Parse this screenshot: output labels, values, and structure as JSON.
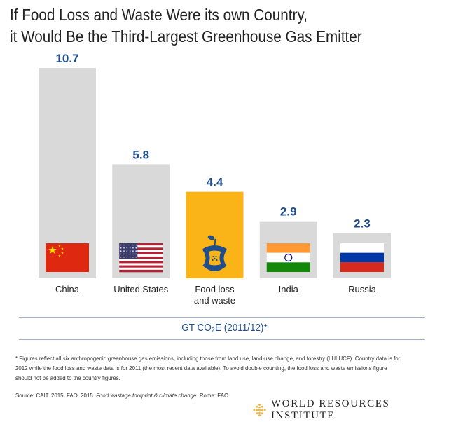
{
  "title_lines": [
    "If Food Loss and Waste Were its own Country,",
    "it Would Be the Third-Largest Greenhouse Gas Emitter"
  ],
  "chart_data": {
    "type": "bar",
    "title": "If Food Loss and Waste Were its own Country, it Would Be the Third-Largest Greenhouse Gas Emitter",
    "categories": [
      "China",
      "United States",
      "Food loss and waste",
      "India",
      "Russia"
    ],
    "category_lines": [
      [
        "China"
      ],
      [
        "United States"
      ],
      [
        "Food loss",
        "and waste"
      ],
      [
        "India"
      ],
      [
        "Russia"
      ]
    ],
    "values": [
      10.7,
      5.8,
      4.4,
      2.9,
      2.3
    ],
    "value_labels": [
      "10.7",
      "5.8",
      "4.4",
      "2.9",
      "2.3"
    ],
    "icons": [
      "china-flag",
      "us-flag",
      "apple-core",
      "india-flag",
      "russia-flag"
    ],
    "xlabel": "GT CO₂E (2011/12)*",
    "ylabel": "",
    "ylim": [
      0,
      10.7
    ],
    "grid": false,
    "colors": {
      "bar": "#d9d9d9",
      "highlight": "#fbb417",
      "value_label": "#1f4e8c"
    }
  },
  "footnote": "* Figures reflect all six anthropogenic greenhouse gas emissions, including those from land use, land-use change, and forestry (LULUCF).  Country data is for 2012 while the food loss and waste data is for 2011 (the most recent data available). To avoid double counting, the food loss and waste emissions figure should not be added to the country figures.",
  "source": {
    "prefix": "Source: CAIT. 2015; FAO. 2015. ",
    "italic": "Food wastage footprint & climate change",
    "suffix": ". Rome: FAO."
  },
  "logo_text": "WORLD RESOURCES INSTITUTE"
}
